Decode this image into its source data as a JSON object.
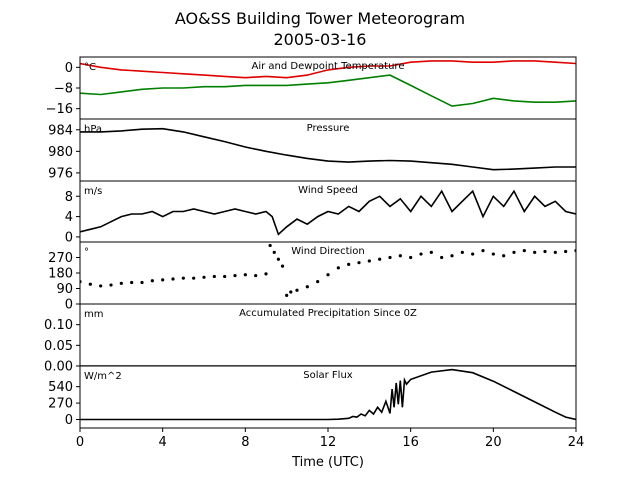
{
  "figure": {
    "title_line1": "AO&SS Building Tower Meteorogram",
    "title_line2": "2005-03-16",
    "xlabel": "Time (UTC)",
    "xlim": [
      0,
      24
    ],
    "xticks": [
      0,
      4,
      8,
      12,
      16,
      20,
      24
    ]
  },
  "chart_data": [
    {
      "type": "line",
      "title": "Air and Dewpoint Temperature",
      "unit": "°C",
      "ylim": [
        -20,
        4
      ],
      "yticks": [
        0,
        -8,
        -16
      ],
      "series": [
        {
          "color": "#e00000",
          "x": [
            0,
            1,
            2,
            3,
            4,
            5,
            6,
            7,
            8,
            9,
            10,
            11,
            12,
            13,
            14,
            15,
            16,
            17,
            18,
            19,
            20,
            21,
            22,
            23,
            24
          ],
          "y": [
            1.5,
            0,
            -1,
            -1.5,
            -2,
            -2.5,
            -3,
            -3.5,
            -4,
            -3.5,
            -4,
            -3,
            -1,
            0,
            0.5,
            0.5,
            2,
            2.5,
            2.5,
            2,
            2,
            2.5,
            2.5,
            2,
            1.5
          ]
        },
        {
          "color": "#008000",
          "x": [
            0,
            1,
            2,
            3,
            4,
            5,
            6,
            7,
            8,
            9,
            10,
            11,
            12,
            13,
            14,
            15,
            16,
            17,
            18,
            19,
            20,
            21,
            22,
            23,
            24
          ],
          "y": [
            -10,
            -10.5,
            -9.5,
            -8.5,
            -8,
            -8,
            -7.5,
            -7.5,
            -7,
            -7,
            -7,
            -6.5,
            -6,
            -5,
            -4,
            -3,
            -7,
            -11,
            -15,
            -14,
            -12,
            -13,
            -13.5,
            -13.5,
            -13
          ]
        }
      ]
    },
    {
      "type": "line",
      "title": "Pressure",
      "unit": "hPa",
      "ylim": [
        974.5,
        986
      ],
      "yticks": [
        984,
        980,
        976
      ],
      "series": [
        {
          "color": "#000000",
          "x": [
            0,
            1,
            2,
            3,
            4,
            5,
            6,
            7,
            8,
            9,
            10,
            11,
            12,
            13,
            14,
            15,
            16,
            17,
            18,
            19,
            20,
            21,
            22,
            23,
            24
          ],
          "y": [
            983.6,
            983.6,
            983.8,
            984.1,
            984.2,
            983.6,
            982.7,
            981.8,
            980.8,
            980.0,
            979.3,
            978.7,
            978.2,
            978.0,
            978.2,
            978.3,
            978.2,
            977.9,
            977.6,
            977.1,
            976.6,
            976.7,
            976.9,
            977.1,
            977.1
          ]
        }
      ]
    },
    {
      "type": "line",
      "title": "Wind Speed",
      "unit": "m/s",
      "ylim": [
        -1,
        11
      ],
      "yticks": [
        8,
        4,
        0
      ],
      "series": [
        {
          "color": "#000000",
          "x": [
            0,
            0.5,
            1,
            1.5,
            2,
            2.5,
            3,
            3.5,
            4,
            4.5,
            5,
            5.5,
            6,
            6.5,
            7,
            7.5,
            8,
            8.5,
            9,
            9.3,
            9.6,
            10,
            10.5,
            11,
            11.5,
            12,
            12.5,
            13,
            13.5,
            14,
            14.5,
            15,
            15.5,
            16,
            16.5,
            17,
            17.5,
            18,
            18.5,
            19,
            19.5,
            20,
            20.5,
            21,
            21.5,
            22,
            22.5,
            23,
            23.5,
            24
          ],
          "y": [
            1,
            1.5,
            2,
            3,
            4,
            4.5,
            4.5,
            5,
            4,
            5,
            5,
            5.5,
            5,
            4.5,
            5,
            5.5,
            5,
            4.5,
            5,
            4,
            0.5,
            2,
            3.5,
            2.5,
            4,
            5,
            4.5,
            6,
            5,
            7,
            8,
            6,
            7.5,
            5,
            8,
            6,
            9,
            5,
            7,
            9,
            4,
            8,
            6,
            9,
            5,
            8,
            6,
            7,
            5,
            4.5
          ]
        }
      ]
    },
    {
      "type": "scatter",
      "title": "Wind Direction",
      "unit": "°",
      "ylim": [
        0,
        360
      ],
      "yticks": [
        270,
        180,
        90,
        0
      ],
      "series": [
        {
          "color": "#000000",
          "x": [
            0,
            0.5,
            1,
            1.5,
            2,
            2.5,
            3,
            3.5,
            4,
            4.5,
            5,
            5.5,
            6,
            6.5,
            7,
            7.5,
            8,
            8.5,
            9,
            9.2,
            9.4,
            9.6,
            9.8,
            10,
            10.2,
            10.5,
            11,
            11.5,
            12,
            12.5,
            13,
            13.5,
            14,
            14.5,
            15,
            15.5,
            16,
            16.5,
            17,
            17.5,
            18,
            18.5,
            19,
            19.5,
            20,
            20.5,
            21,
            21.5,
            22,
            22.5,
            23,
            23.5,
            24
          ],
          "y": [
            130,
            115,
            105,
            110,
            120,
            125,
            125,
            135,
            140,
            145,
            150,
            150,
            155,
            160,
            160,
            165,
            170,
            165,
            175,
            340,
            300,
            260,
            220,
            50,
            70,
            80,
            100,
            130,
            170,
            210,
            230,
            240,
            250,
            260,
            270,
            280,
            270,
            290,
            300,
            270,
            280,
            300,
            290,
            310,
            290,
            280,
            300,
            310,
            300,
            305,
            300,
            305,
            310
          ]
        }
      ]
    },
    {
      "type": "line",
      "title": "Accumulated Precipitation Since 0Z",
      "unit": "mm",
      "ylim": [
        0,
        0.15
      ],
      "yticks": [
        0.1,
        0.05,
        0.0
      ],
      "series": [
        {
          "color": "#000000",
          "x": [
            0,
            24
          ],
          "y": [
            0,
            0
          ]
        }
      ]
    },
    {
      "type": "line",
      "title": "Solar Flux",
      "unit": "W/m^2",
      "ylim": [
        -140,
        880
      ],
      "yticks": [
        540,
        270,
        0
      ],
      "series": [
        {
          "color": "#000000",
          "x": [
            0,
            2,
            4,
            6,
            8,
            10,
            12,
            12.5,
            13,
            13.2,
            13.4,
            13.6,
            13.8,
            14,
            14.2,
            14.4,
            14.6,
            14.8,
            15,
            15.1,
            15.2,
            15.3,
            15.4,
            15.5,
            15.6,
            15.7,
            15.8,
            16,
            17,
            18,
            19,
            20,
            21,
            22,
            23,
            23.5,
            24
          ],
          "y": [
            0,
            0,
            0,
            0,
            0,
            0,
            0,
            5,
            20,
            50,
            40,
            90,
            60,
            150,
            90,
            200,
            120,
            300,
            100,
            500,
            200,
            600,
            250,
            640,
            200,
            650,
            580,
            660,
            780,
            820,
            770,
            630,
            460,
            290,
            120,
            40,
            0
          ]
        }
      ]
    }
  ]
}
